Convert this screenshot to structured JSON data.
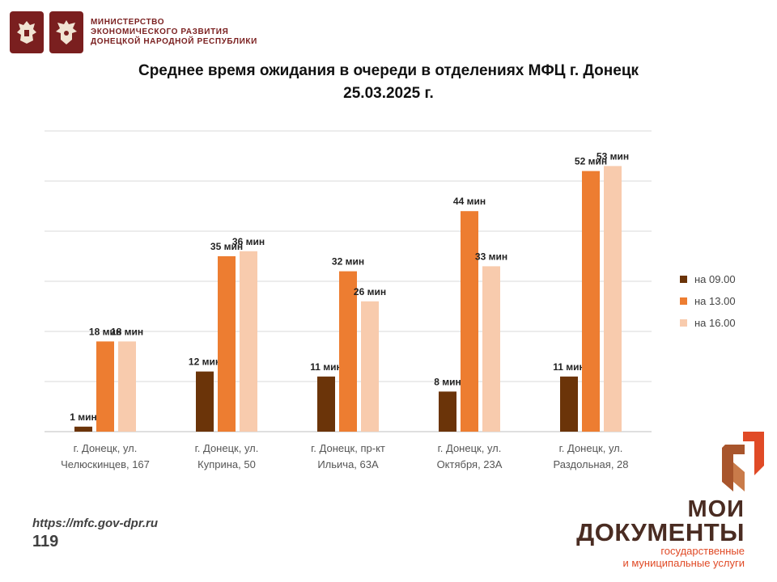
{
  "header": {
    "ministry_lines": [
      "МИНИСТЕРСТВО",
      "ЭКОНОМИЧЕСКОГО РАЗВИТИЯ",
      "ДОНЕЦКОЙ НАРОДНОЙ РЕСПУБЛИКИ"
    ],
    "emblem_icons": [
      "russia-coat-of-arms-icon",
      "dpr-coat-of-arms-icon"
    ]
  },
  "colors": {
    "series_09": "#6b3409",
    "series_13": "#ed7d31",
    "series_16": "#f8cbad",
    "grid": "#d9d9d9",
    "brand_dark": "#4a2c22",
    "brand_accent": "#e04a26"
  },
  "chart_data": {
    "type": "bar",
    "title_line1": "Среднее время ожидания в очереди в отделениях МФЦ г. Донецк",
    "title_line2": "25.03.2025 г.",
    "categories": [
      [
        "г. Донецк, ул.",
        "Челюскинцев, 167"
      ],
      [
        "г. Донецк, ул.",
        "Куприна, 50"
      ],
      [
        "г. Донецк, пр-кт",
        "Ильича, 63А"
      ],
      [
        "г. Донецк, ул.",
        "Октября, 23А"
      ],
      [
        "г. Донецк, ул.",
        "Раздольная, 28"
      ]
    ],
    "series": [
      {
        "name": "на 09.00",
        "values": [
          1,
          12,
          11,
          8,
          11
        ],
        "labels": [
          "1 мин",
          "12 мин",
          "11 мин",
          "8 мин",
          "11 мин"
        ]
      },
      {
        "name": "на 13.00",
        "values": [
          18,
          35,
          32,
          44,
          52
        ],
        "labels": [
          "18 мин",
          "35 мин",
          "32 мин",
          "44 мин",
          "52 мин"
        ]
      },
      {
        "name": "на 16.00",
        "values": [
          18,
          36,
          26,
          33,
          53
        ],
        "labels": [
          "18 мин",
          "36 мин",
          "26 мин",
          "33 мин",
          "53 мин"
        ]
      }
    ],
    "ylim": [
      0,
      60
    ],
    "y_gridlines": [
      10,
      20,
      30,
      40,
      50,
      60
    ],
    "y_tick_labels_visible": false,
    "grid": true,
    "legend_position": "right"
  },
  "footer": {
    "url": "https://mfc.gov-dpr.ru",
    "page_number": "119"
  },
  "brand": {
    "line1": "МОИ",
    "line2": "ДОКУМЕНТЫ",
    "line3": "государственные",
    "line4": "и муниципальные услуги",
    "logo_icon": "moi-dokumenty-logo-icon"
  }
}
